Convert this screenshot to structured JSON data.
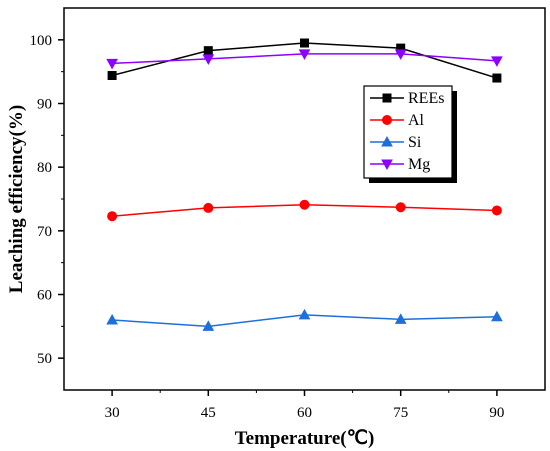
{
  "chart_data": {
    "type": "line",
    "xlabel": "Temperature(℃)",
    "ylabel": "Leaching efficiency(%)",
    "x": [
      30,
      45,
      60,
      75,
      90
    ],
    "xticks": [
      "30",
      "45",
      "60",
      "75",
      "90"
    ],
    "xlim": [
      22.5,
      97.5
    ],
    "yticks": [
      "50",
      "60",
      "70",
      "80",
      "90",
      "100"
    ],
    "ylim": [
      45,
      105
    ],
    "grid": false,
    "legend_position": "upper-right",
    "series": [
      {
        "name": "REEs",
        "values": [
          94.4,
          98.3,
          99.5,
          98.7,
          94.0
        ],
        "color": "#000000",
        "marker": "square"
      },
      {
        "name": "Al",
        "values": [
          72.3,
          73.6,
          74.1,
          73.7,
          73.2
        ],
        "color": "#ff0000",
        "marker": "circle"
      },
      {
        "name": "Si",
        "values": [
          56.0,
          55.0,
          56.8,
          56.1,
          56.5
        ],
        "color": "#1e6fd9",
        "marker": "triangle-up"
      },
      {
        "name": "Mg",
        "values": [
          96.3,
          97.0,
          97.8,
          97.8,
          96.7
        ],
        "color": "#8b00ff",
        "marker": "triangle-down"
      }
    ]
  }
}
